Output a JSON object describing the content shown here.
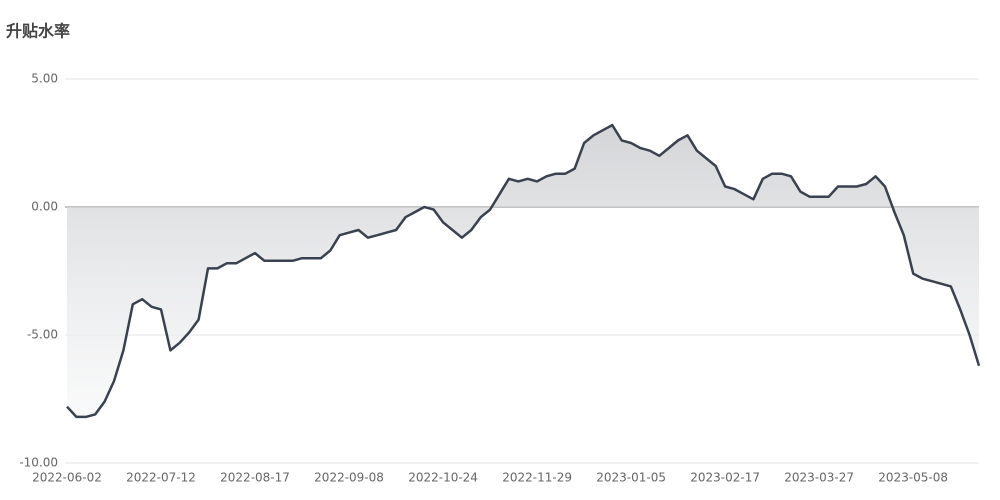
{
  "chart_data": {
    "type": "line",
    "title": "升贴水率",
    "categories": [
      "2022-06-02",
      null,
      null,
      null,
      null,
      null,
      null,
      null,
      null,
      null,
      "2022-07-12",
      null,
      null,
      null,
      null,
      null,
      null,
      null,
      null,
      null,
      "2022-08-17",
      null,
      null,
      null,
      null,
      null,
      null,
      null,
      null,
      null,
      "2022-09-08",
      null,
      null,
      null,
      null,
      null,
      null,
      null,
      null,
      null,
      "2022-10-24",
      null,
      null,
      null,
      null,
      null,
      null,
      null,
      null,
      null,
      "2022-11-29",
      null,
      null,
      null,
      null,
      null,
      null,
      null,
      null,
      null,
      "2023-01-05",
      null,
      null,
      null,
      null,
      null,
      null,
      null,
      null,
      null,
      "2023-02-17",
      null,
      null,
      null,
      null,
      null,
      null,
      null,
      null,
      null,
      "2023-03-27",
      null,
      null,
      null,
      null,
      null,
      null,
      null,
      null,
      null,
      "2023-05-08",
      null,
      null,
      null,
      null,
      null,
      null,
      null
    ],
    "values": [
      -7.8,
      -8.2,
      -8.2,
      -8.1,
      -7.6,
      -6.8,
      -5.6,
      -3.8,
      -3.6,
      -3.9,
      -4.0,
      -5.6,
      -5.3,
      -4.9,
      -4.4,
      -2.4,
      -2.4,
      -2.2,
      -2.2,
      -2.0,
      -1.8,
      -2.1,
      -2.1,
      -2.1,
      -2.1,
      -2.0,
      -2.0,
      -2.0,
      -1.7,
      -1.1,
      -1.0,
      -0.9,
      -1.2,
      -1.1,
      -1.0,
      -0.9,
      -0.4,
      -0.2,
      0.0,
      -0.1,
      -0.6,
      -0.9,
      -1.2,
      -0.9,
      -0.4,
      -0.1,
      0.5,
      1.1,
      1.0,
      1.1,
      1.0,
      1.2,
      1.3,
      1.3,
      1.5,
      2.5,
      2.8,
      3.0,
      3.2,
      2.6,
      2.5,
      2.3,
      2.2,
      2.0,
      2.3,
      2.6,
      2.8,
      2.2,
      1.9,
      1.6,
      0.8,
      0.7,
      0.5,
      0.3,
      1.1,
      1.3,
      1.3,
      1.2,
      0.6,
      0.4,
      0.4,
      0.4,
      0.8,
      0.8,
      0.8,
      0.9,
      1.2,
      0.8,
      -0.2,
      -1.1,
      -2.6,
      -2.8,
      -2.9,
      -3.0,
      -3.1,
      -4.0,
      -5.0,
      -6.2
    ],
    "color": "#3a4250",
    "area": true,
    "grid": true,
    "ylim": [
      -10,
      5
    ],
    "yticks": [
      {
        "value": 5,
        "label": "5.00"
      },
      {
        "value": 0,
        "label": "0.00"
      },
      {
        "value": -5,
        "label": "-5.00"
      },
      {
        "value": -10,
        "label": "-10.00"
      }
    ]
  }
}
